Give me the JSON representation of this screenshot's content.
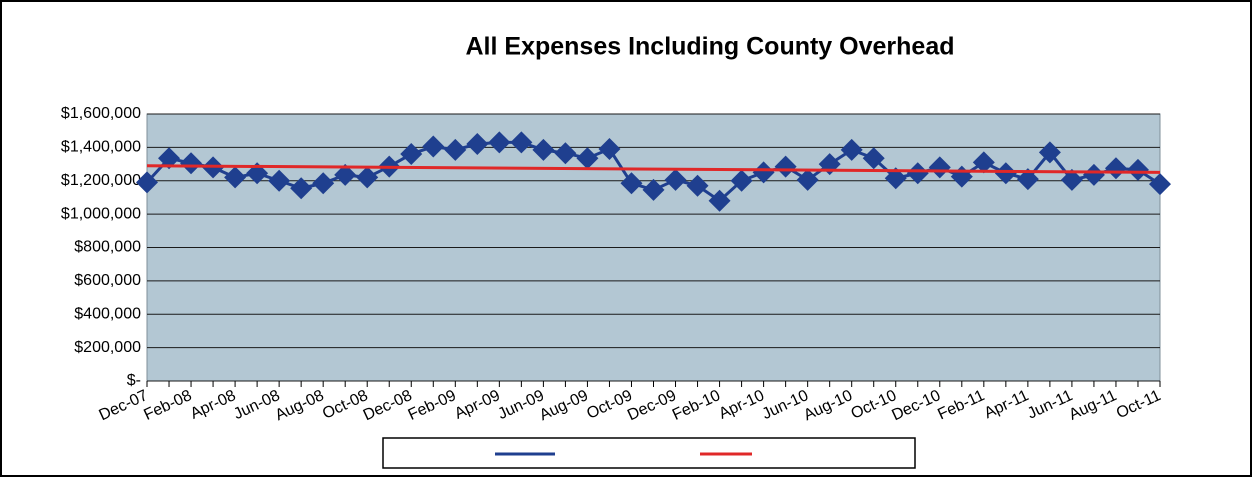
{
  "chart_data": {
    "type": "line",
    "title": "All Expenses Including County Overhead",
    "categories": [
      "Dec-07",
      null,
      "Feb-08",
      null,
      "Apr-08",
      null,
      "Jun-08",
      null,
      "Aug-08",
      null,
      "Oct-08",
      null,
      "Dec-08",
      null,
      "Feb-09",
      null,
      "Apr-09",
      null,
      "Jun-09",
      null,
      "Aug-09",
      null,
      "Oct-09",
      null,
      "Dec-09",
      null,
      "Feb-10",
      null,
      "Apr-10",
      null,
      "Jun-10",
      null,
      "Aug-10",
      null,
      "Oct-10",
      null,
      "Dec-10",
      null,
      "Feb-11",
      null,
      "Apr-11",
      null,
      "Jun-11",
      null,
      "Aug-11",
      null,
      "Oct-11"
    ],
    "series": [
      {
        "color": "#1f3f8f",
        "values": [
          1190000,
          1335000,
          1305000,
          1280000,
          1220000,
          1245000,
          1200000,
          1155000,
          1185000,
          1235000,
          1220000,
          1285000,
          1360000,
          1405000,
          1385000,
          1420000,
          1430000,
          1430000,
          1385000,
          1365000,
          1335000,
          1390000,
          1185000,
          1145000,
          1205000,
          1170000,
          1080000,
          1200000,
          1250000,
          1285000,
          1205000,
          1300000,
          1385000,
          1335000,
          1215000,
          1245000,
          1280000,
          1225000,
          1310000,
          1245000,
          1210000,
          1370000,
          1205000,
          1235000,
          1275000,
          1265000,
          1180000
        ]
      }
    ],
    "trendline": {
      "color": "#e02828",
      "start": 1290000,
      "end": 1250000
    },
    "ylim": [
      0,
      1600000
    ],
    "yticks": [
      {
        "value": 0,
        "label": "$-"
      },
      {
        "value": 200000,
        "label": "$200,000"
      },
      {
        "value": 400000,
        "label": "$400,000"
      },
      {
        "value": 600000,
        "label": "$600,000"
      },
      {
        "value": 800000,
        "label": "$800,000"
      },
      {
        "value": 1000000,
        "label": "$1,000,000"
      },
      {
        "value": 1200000,
        "label": "$1,200,000"
      },
      {
        "value": 1400000,
        "label": "$1,400,000"
      },
      {
        "value": 1600000,
        "label": "$1,600,000"
      }
    ],
    "grid": true
  }
}
